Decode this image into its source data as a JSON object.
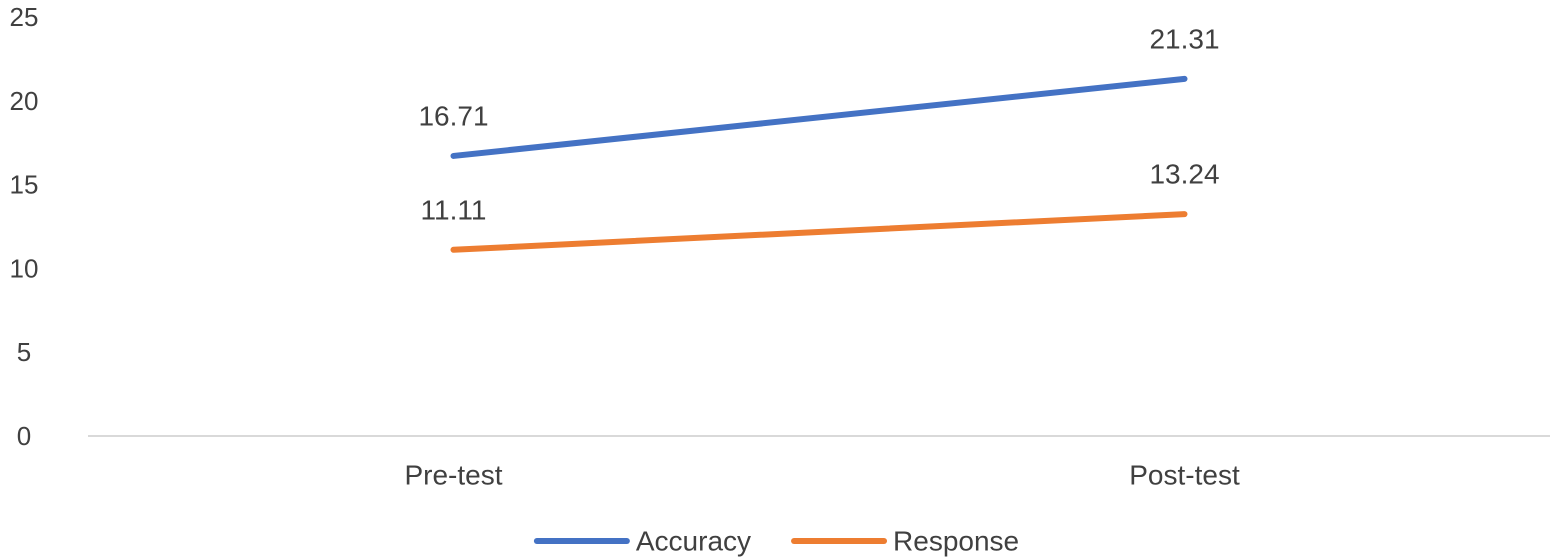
{
  "chart_data": {
    "type": "line",
    "categories": [
      "Pre-test",
      "Post-test"
    ],
    "series": [
      {
        "name": "Accuracy",
        "values": [
          16.71,
          21.31
        ],
        "labels": [
          "16.71",
          "21.31"
        ],
        "color": "#4472C4"
      },
      {
        "name": "Response",
        "values": [
          11.11,
          13.24
        ],
        "labels": [
          "11.11",
          "13.24"
        ],
        "color": "#ED7D31"
      }
    ],
    "ylim": [
      0,
      25
    ],
    "yticks": [
      "0",
      "5",
      "10",
      "15",
      "20",
      "25"
    ],
    "title": "",
    "xlabel": "",
    "ylabel": "",
    "grid": false,
    "legend": "bottom-center",
    "axis_color": "#D9D9D9",
    "text_color": "#404040"
  }
}
